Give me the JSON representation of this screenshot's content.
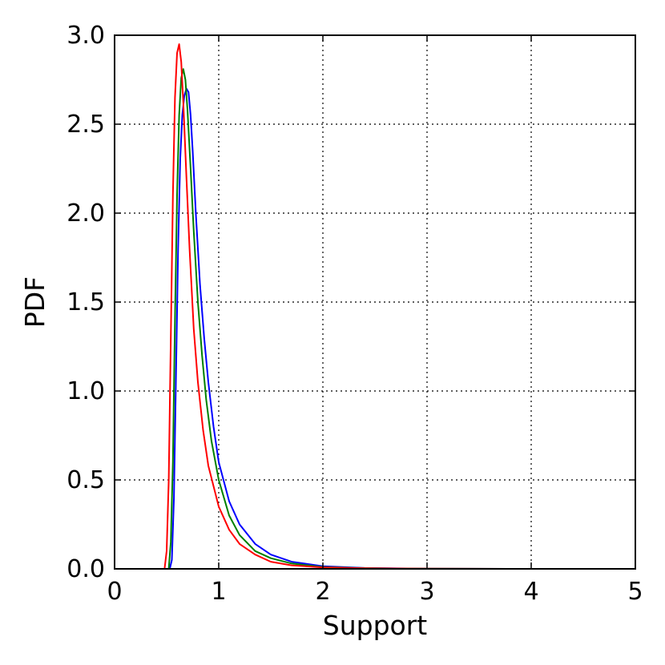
{
  "chart_data": {
    "type": "line",
    "title": "",
    "xlabel": "Support",
    "ylabel": "PDF",
    "xlim": [
      0,
      5
    ],
    "ylim": [
      0,
      3
    ],
    "xticks": [
      0,
      1,
      2,
      3,
      4,
      5
    ],
    "yticks": [
      0.0,
      0.5,
      1.0,
      1.5,
      2.0,
      2.5,
      3.0
    ],
    "xtick_labels": [
      "0",
      "1",
      "2",
      "3",
      "4",
      "5"
    ],
    "ytick_labels": [
      "0.0",
      "0.5",
      "1.0",
      "1.5",
      "2.0",
      "2.5",
      "3.0"
    ],
    "grid": true,
    "legend": "none",
    "series": [
      {
        "color": "#0000ff",
        "x": [
          0.5,
          0.53,
          0.55,
          0.57,
          0.59,
          0.61,
          0.63,
          0.65,
          0.67,
          0.69,
          0.71,
          0.73,
          0.75,
          0.78,
          0.82,
          0.86,
          0.9,
          0.95,
          1.0,
          1.1,
          1.2,
          1.35,
          1.5,
          1.7,
          2.0,
          2.4,
          3.0,
          4.0,
          5.0
        ],
        "y": [
          0.0,
          0.0,
          0.05,
          0.4,
          1.1,
          1.8,
          2.3,
          2.55,
          2.66,
          2.7,
          2.68,
          2.55,
          2.35,
          2.0,
          1.6,
          1.3,
          1.05,
          0.8,
          0.6,
          0.38,
          0.25,
          0.14,
          0.08,
          0.04,
          0.015,
          0.005,
          0.001,
          0.0,
          0.0
        ]
      },
      {
        "color": "#008000",
        "x": [
          0.5,
          0.52,
          0.54,
          0.56,
          0.58,
          0.6,
          0.62,
          0.64,
          0.66,
          0.68,
          0.7,
          0.73,
          0.76,
          0.8,
          0.84,
          0.88,
          0.93,
          1.0,
          1.1,
          1.2,
          1.35,
          1.5,
          1.7,
          2.0,
          2.4,
          3.0,
          4.0,
          5.0
        ],
        "y": [
          0.0,
          0.0,
          0.15,
          0.6,
          1.4,
          2.1,
          2.55,
          2.76,
          2.81,
          2.75,
          2.58,
          2.25,
          1.9,
          1.5,
          1.2,
          0.95,
          0.72,
          0.5,
          0.3,
          0.19,
          0.1,
          0.06,
          0.03,
          0.01,
          0.004,
          0.001,
          0.0,
          0.0
        ]
      },
      {
        "color": "#ff0000",
        "x": [
          0.45,
          0.48,
          0.5,
          0.52,
          0.54,
          0.56,
          0.58,
          0.6,
          0.62,
          0.64,
          0.66,
          0.69,
          0.72,
          0.76,
          0.8,
          0.85,
          0.9,
          1.0,
          1.1,
          1.2,
          1.35,
          1.5,
          1.7,
          2.0,
          2.4,
          3.0,
          4.0,
          5.0
        ],
        "y": [
          0.0,
          0.0,
          0.1,
          0.5,
          1.3,
          2.1,
          2.65,
          2.9,
          2.95,
          2.85,
          2.62,
          2.2,
          1.8,
          1.35,
          1.05,
          0.78,
          0.58,
          0.35,
          0.22,
          0.14,
          0.08,
          0.04,
          0.02,
          0.008,
          0.003,
          0.001,
          0.0,
          0.0
        ]
      }
    ]
  }
}
